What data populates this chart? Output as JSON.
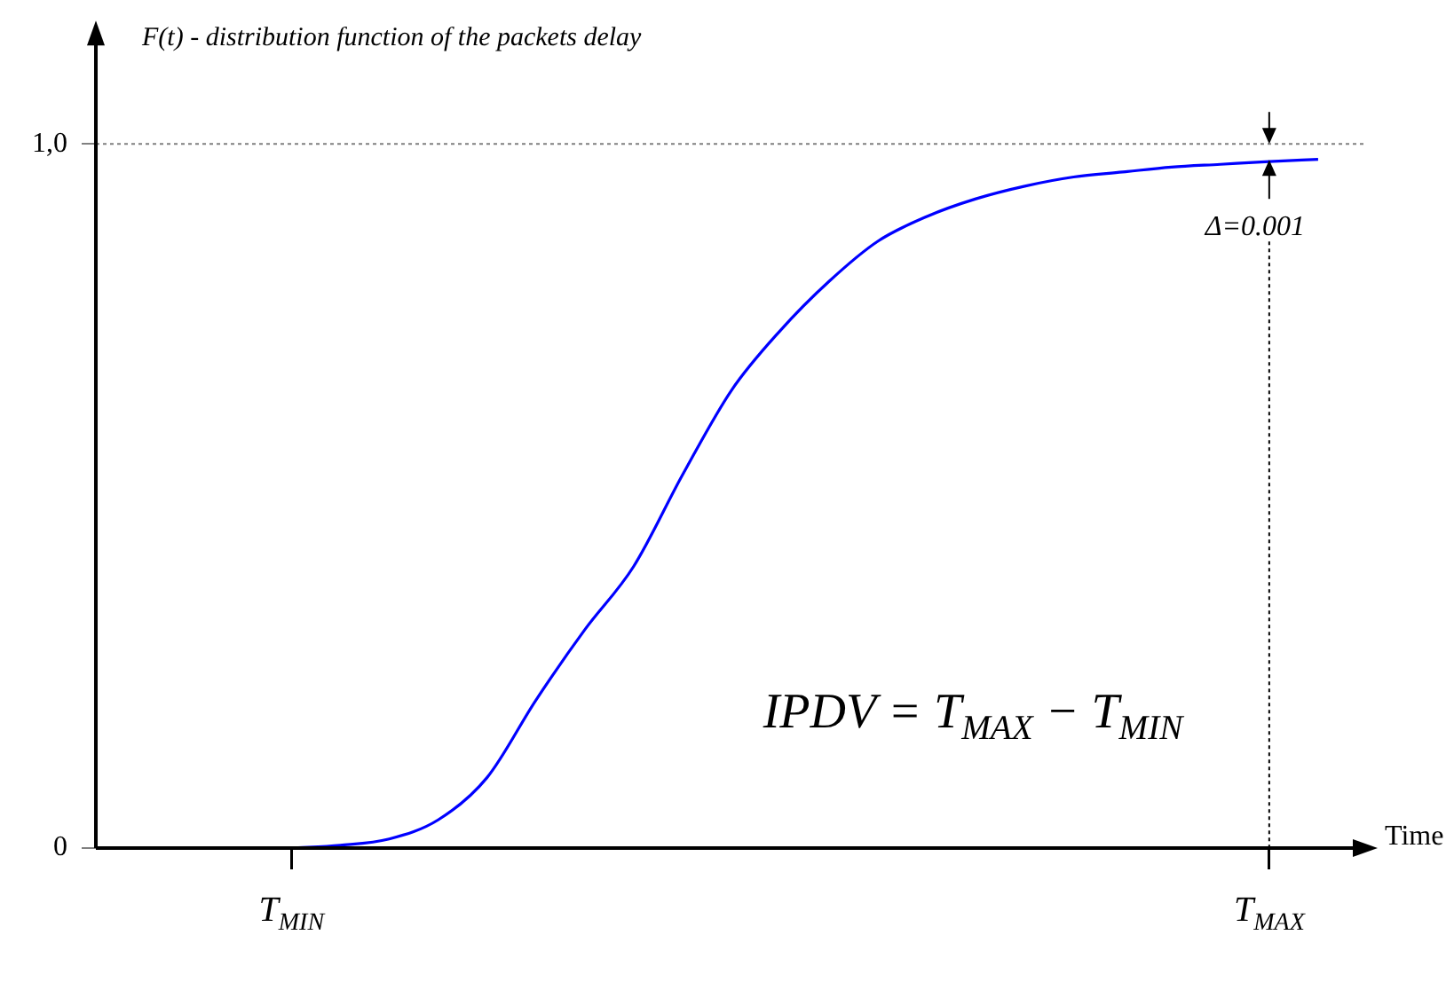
{
  "chart_data": {
    "type": "line",
    "ylabel": "F(t) - distribution function of the packets delay",
    "xlabel": "Time",
    "categories": [
      null,
      null,
      null,
      null,
      "T$_{MIN}$",
      null,
      null,
      null,
      null,
      null,
      null,
      null,
      null,
      null,
      null,
      null,
      null,
      null,
      null,
      null,
      null,
      null,
      null,
      null,
      "T$_{MAX}$",
      null,
      null
    ],
    "ylim": [
      0,
      1.16
    ],
    "yticks": [
      0,
      {
        "value": 1,
        "label": "1,0"
      }
    ],
    "ref_lines": [
      {
        "axis": "y",
        "value": 1,
        "color": "#808080",
        "line_style": "dotted"
      },
      {
        "axis": "x",
        "value": "T$_{MAX}$",
        "color": "#000000",
        "line_style": "dotted"
      }
    ],
    "annotations": [
      {
        "text": "Δ=0.001",
        "x": "T$_{MAX}$",
        "y": 1
      },
      "IPDV = T$_{MAX}$ − T$_{MIN}$"
    ],
    "series": [
      {
        "color": "#0000ff",
        "values": [
          null,
          null,
          null,
          null,
          0,
          0.004,
          0.013,
          0.04,
          0.1,
          0.21,
          0.31,
          0.4,
          0.53,
          0.65,
          0.735,
          0.805,
          0.862,
          0.897,
          0.922,
          0.94,
          0.953,
          0.96,
          0.967,
          0.971,
          0.975,
          0.978,
          null
        ]
      }
    ]
  }
}
